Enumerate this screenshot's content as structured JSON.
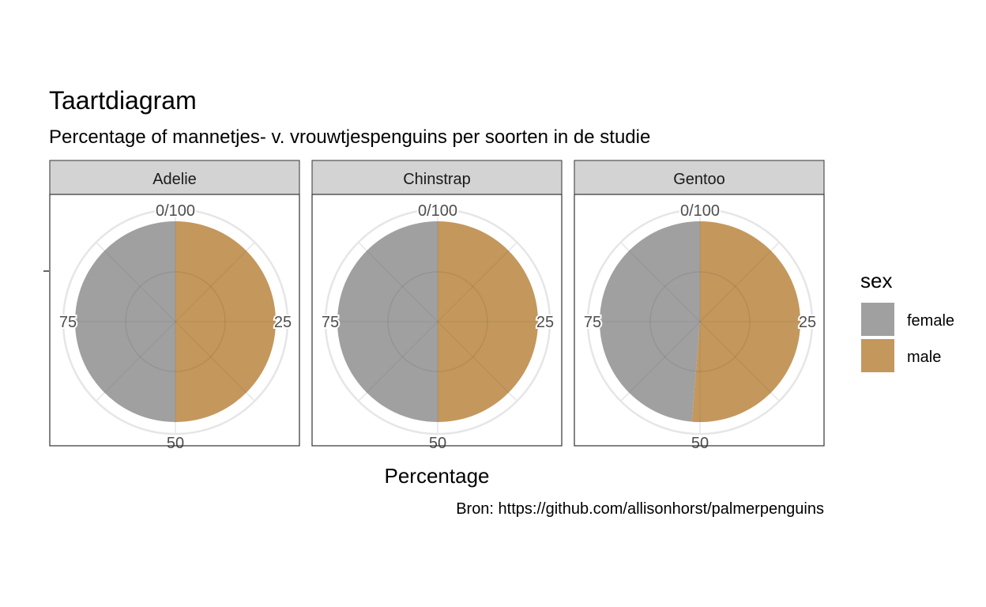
{
  "chart_data": {
    "type": "pie",
    "title": "Taartdiagram",
    "subtitle": "Percentage of mannetjes- v. vrouwtjespenguins per soorten in de studie",
    "xlabel": "Percentage",
    "caption": "Bron: https://github.com/allisonhorst/palmerpenguins",
    "theta_ticks": [
      "0/100",
      "25",
      "50",
      "75"
    ],
    "legend": {
      "title": "sex",
      "position": "right",
      "entries": [
        {
          "label": "female",
          "color": "#a0a0a0"
        },
        {
          "label": "male",
          "color": "#c4975c"
        }
      ]
    },
    "panels": [
      {
        "label": "Adelie",
        "slices": [
          {
            "label": "male",
            "value": 50.0
          },
          {
            "label": "female",
            "value": 50.0
          }
        ]
      },
      {
        "label": "Chinstrap",
        "slices": [
          {
            "label": "male",
            "value": 50.0
          },
          {
            "label": "female",
            "value": 50.0
          }
        ]
      },
      {
        "label": "Gentoo",
        "slices": [
          {
            "label": "male",
            "value": 51.3
          },
          {
            "label": "female",
            "value": 48.7
          }
        ]
      }
    ],
    "grid": true
  }
}
